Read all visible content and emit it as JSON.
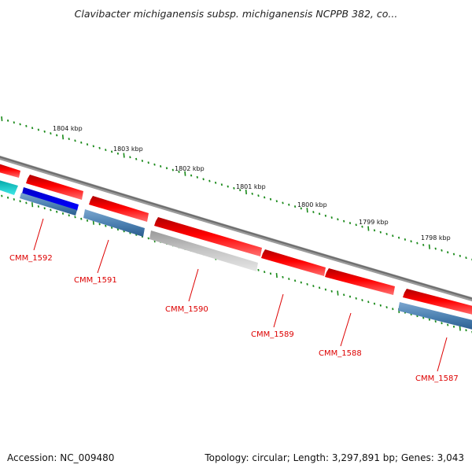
{
  "header": {
    "title": "Clavibacter michiganensis subsp. michiganensis NCPPB 382, co..."
  },
  "footer": {
    "accession": "Accession: NC_009480",
    "summary": "Topology: circular; Length: 3,297,891 bp; Genes: 3,043"
  },
  "tick_labels": [
    "1804 kbp",
    "1803 kbp",
    "1802 kbp",
    "1801 kbp",
    "1800 kbp",
    "1799 kbp",
    "1798 kbp"
  ],
  "gene_labels": [
    "CMM_1592",
    "CMM_1591",
    "CMM_1590",
    "CMM_1589",
    "CMM_1588",
    "CMM_1587"
  ],
  "colors": {
    "backbone": "#808080",
    "tick": "#1a8a1a",
    "forward_gene": "#ff0000",
    "reverse_gene": "#4a7fb0",
    "dark_blue_gene": "#0000ee",
    "cyan_gene": "#11cccc",
    "gray_gene": "#b8b8b8",
    "label": "#dd0000"
  }
}
